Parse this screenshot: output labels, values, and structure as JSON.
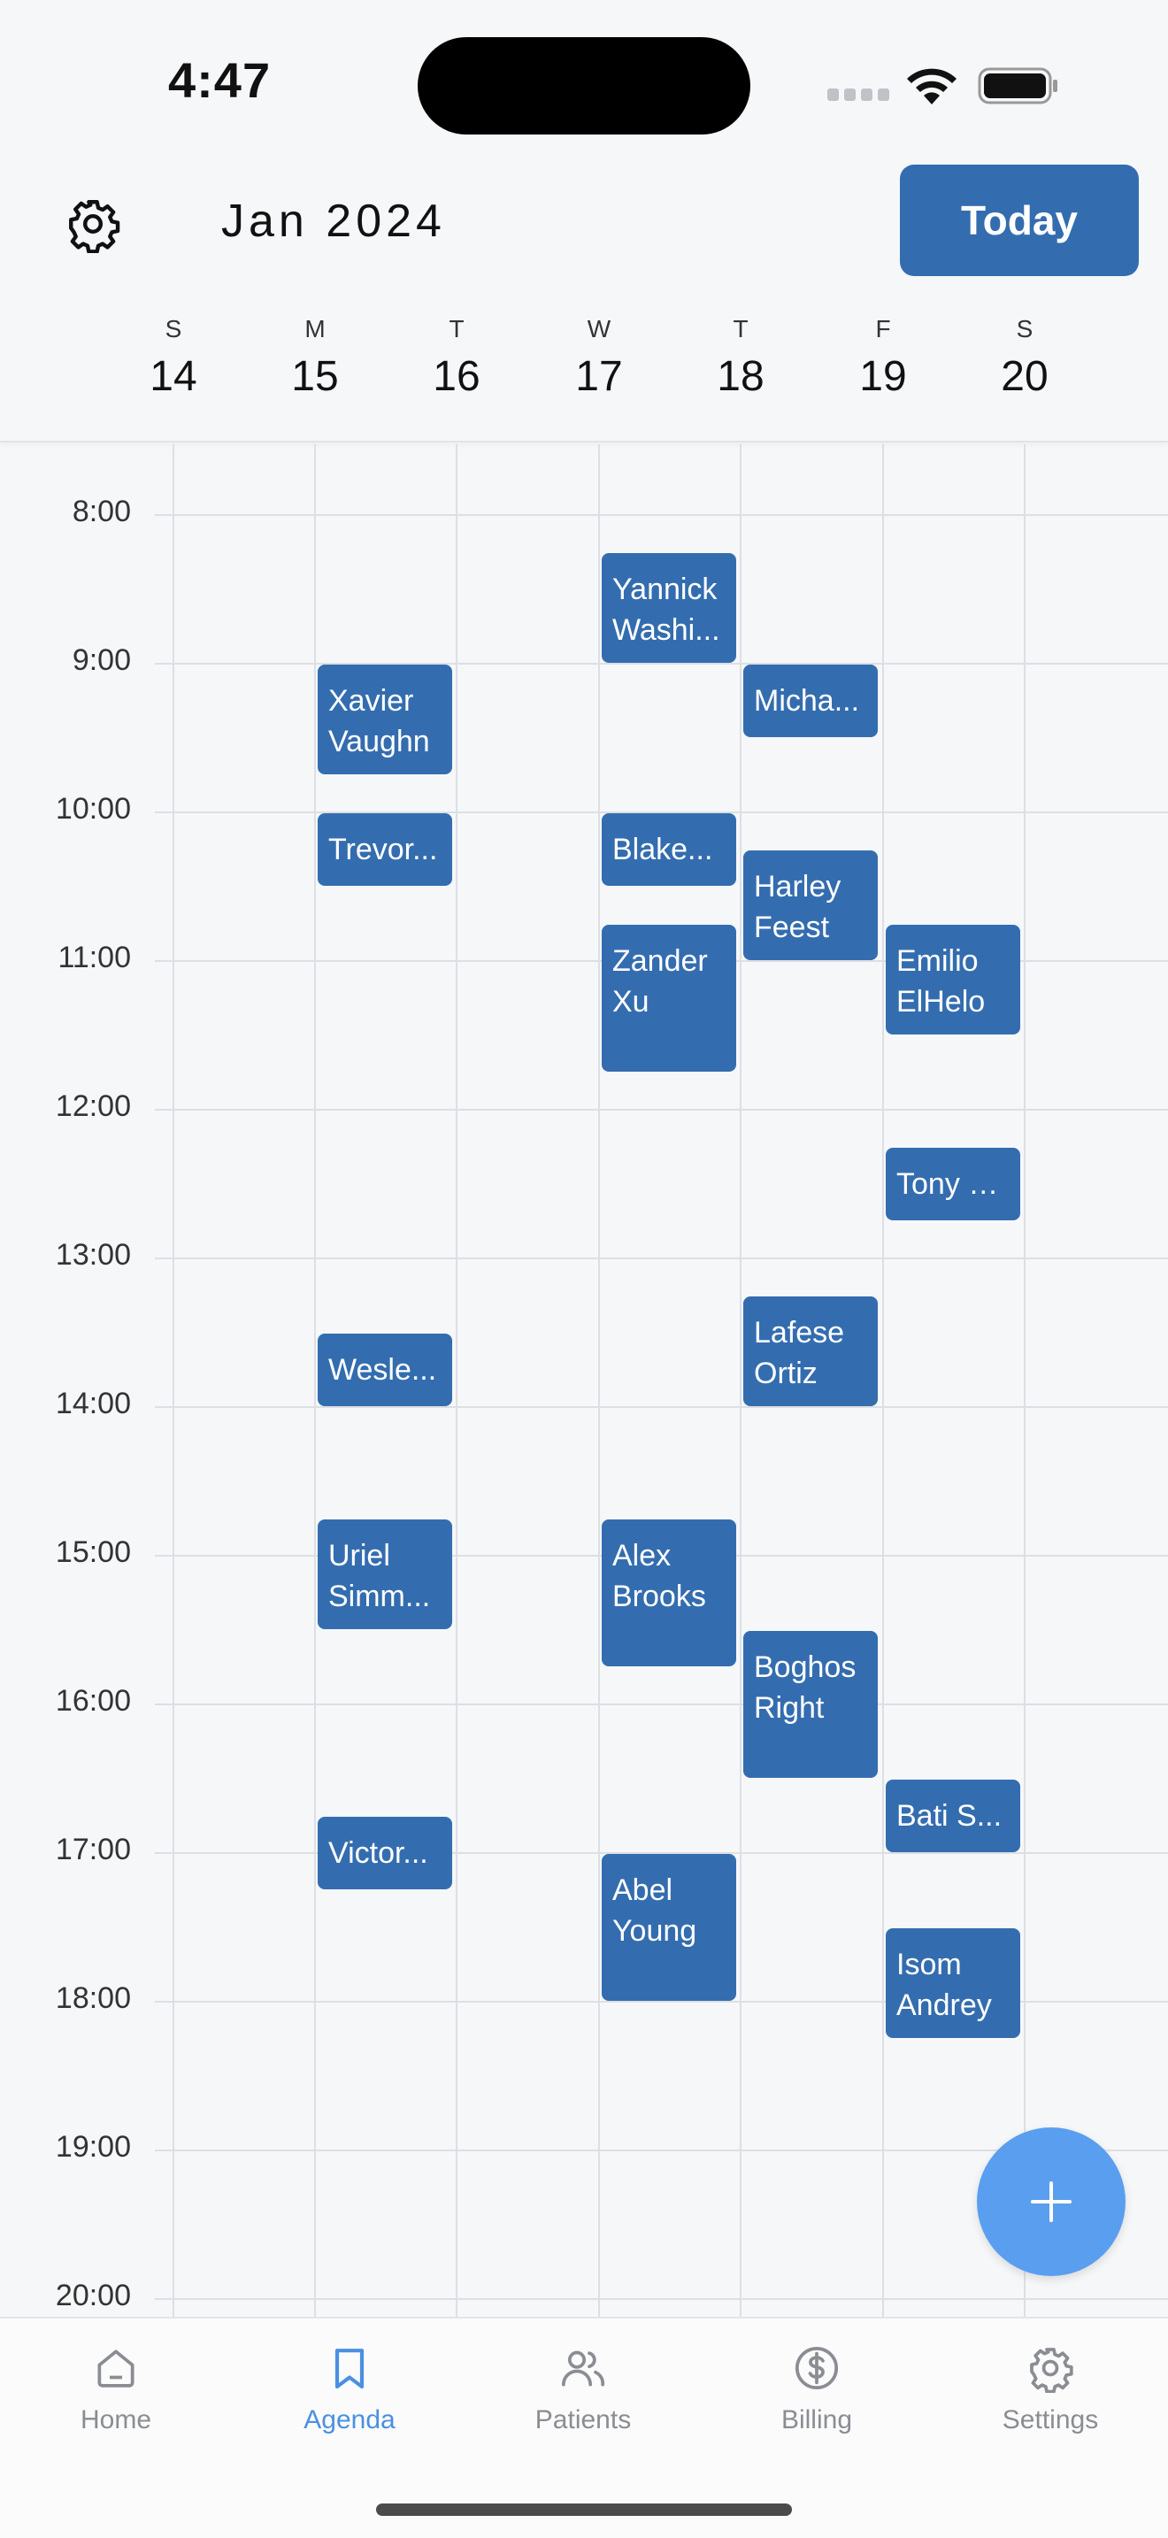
{
  "status_bar": {
    "time": "4:47"
  },
  "header": {
    "month": "Jan 2024",
    "today_label": "Today",
    "days": [
      {
        "letter": "S",
        "num": "14"
      },
      {
        "letter": "M",
        "num": "15"
      },
      {
        "letter": "T",
        "num": "16"
      },
      {
        "letter": "W",
        "num": "17"
      },
      {
        "letter": "T",
        "num": "18"
      },
      {
        "letter": "F",
        "num": "19"
      },
      {
        "letter": "S",
        "num": "20"
      }
    ]
  },
  "hours": [
    "8:00",
    "9:00",
    "10:00",
    "11:00",
    "12:00",
    "13:00",
    "14:00",
    "15:00",
    "16:00",
    "17:00",
    "18:00",
    "19:00",
    "20:00"
  ],
  "events": [
    {
      "day": 3,
      "start": 8.25,
      "end": 9.0,
      "lines": [
        "Yannick",
        "Washi..."
      ]
    },
    {
      "day": 1,
      "start": 9.0,
      "end": 9.75,
      "lines": [
        "Xavier",
        "Vaughn"
      ]
    },
    {
      "day": 4,
      "start": 9.0,
      "end": 9.5,
      "lines": [
        "Micha..."
      ]
    },
    {
      "day": 1,
      "start": 10.0,
      "end": 10.5,
      "lines": [
        "Trevor..."
      ]
    },
    {
      "day": 3,
      "start": 10.0,
      "end": 10.5,
      "lines": [
        "Blake..."
      ]
    },
    {
      "day": 4,
      "start": 10.25,
      "end": 11.0,
      "lines": [
        "Harley",
        "Feest"
      ]
    },
    {
      "day": 3,
      "start": 10.75,
      "end": 11.75,
      "lines": [
        "Zander",
        "Xu"
      ]
    },
    {
      "day": 5,
      "start": 10.75,
      "end": 11.5,
      "lines": [
        "Emilio",
        "ElHelo"
      ]
    },
    {
      "day": 5,
      "start": 12.25,
      "end": 12.75,
      "lines": [
        "Tony B..."
      ]
    },
    {
      "day": 4,
      "start": 13.25,
      "end": 14.0,
      "lines": [
        "Lafese",
        "Ortiz"
      ]
    },
    {
      "day": 1,
      "start": 13.5,
      "end": 14.0,
      "lines": [
        "Wesle..."
      ]
    },
    {
      "day": 1,
      "start": 14.75,
      "end": 15.5,
      "lines": [
        "Uriel",
        "Simm..."
      ]
    },
    {
      "day": 3,
      "start": 14.75,
      "end": 15.75,
      "lines": [
        "Alex",
        "Brooks"
      ]
    },
    {
      "day": 4,
      "start": 15.5,
      "end": 16.5,
      "lines": [
        "Boghos",
        "Right"
      ]
    },
    {
      "day": 5,
      "start": 16.5,
      "end": 17.0,
      "lines": [
        "Bati S..."
      ]
    },
    {
      "day": 1,
      "start": 16.75,
      "end": 17.25,
      "lines": [
        "Victor..."
      ]
    },
    {
      "day": 3,
      "start": 17.0,
      "end": 18.0,
      "lines": [
        "Abel",
        "Young"
      ]
    },
    {
      "day": 5,
      "start": 17.5,
      "end": 18.25,
      "lines": [
        "Isom",
        "Andrey"
      ]
    }
  ],
  "tabbar": [
    {
      "label": "Home",
      "icon": "home-icon",
      "active": false
    },
    {
      "label": "Agenda",
      "icon": "bookmark-icon",
      "active": true
    },
    {
      "label": "Patients",
      "icon": "users-icon",
      "active": false
    },
    {
      "label": "Billing",
      "icon": "dollar-icon",
      "active": false
    },
    {
      "label": "Settings",
      "icon": "gear-icon",
      "active": false
    }
  ],
  "colors": {
    "accent": "#346daf",
    "fab": "#5a9ef0",
    "active_tab": "#4a90e2",
    "inactive_tab": "#8a8d92"
  }
}
